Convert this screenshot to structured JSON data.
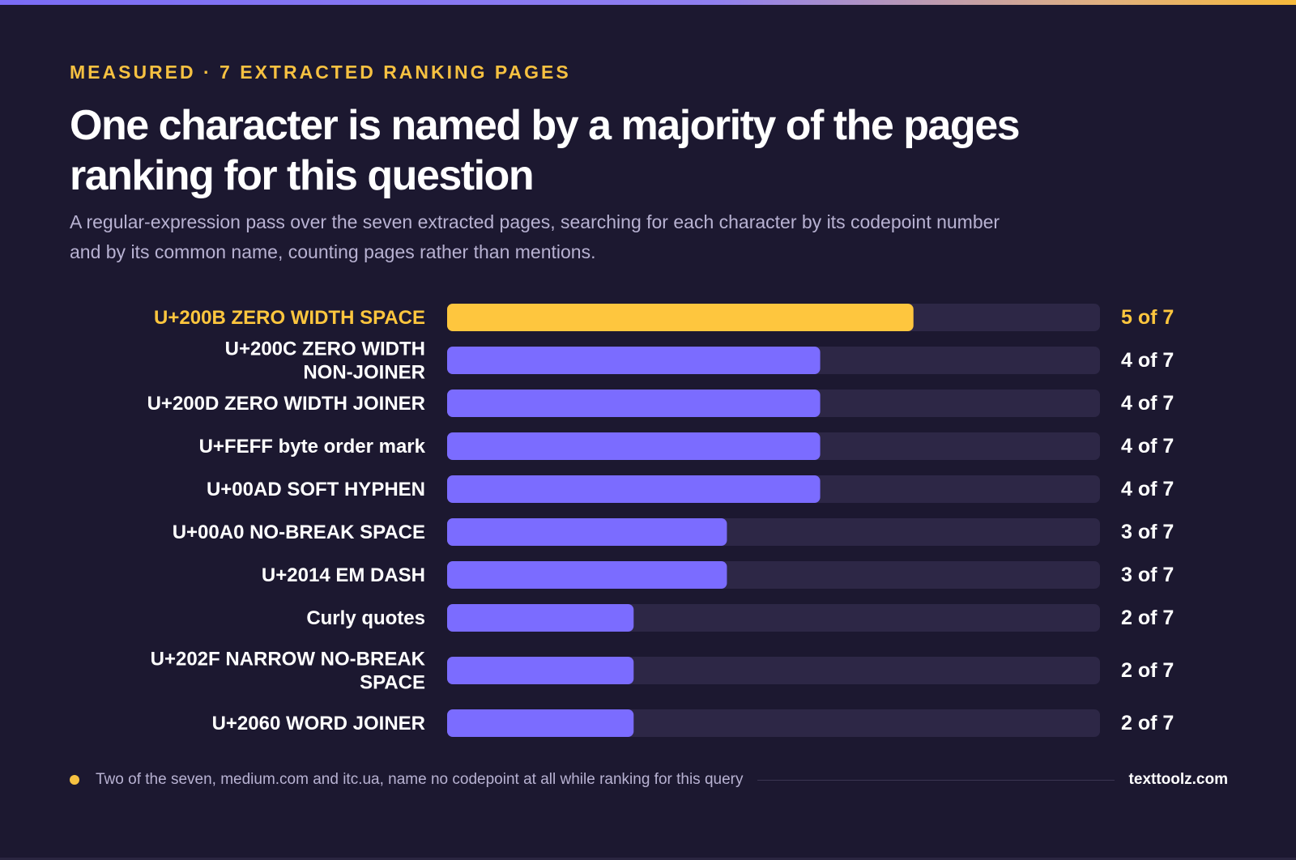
{
  "header": {
    "kicker": "MEASURED · 7 EXTRACTED RANKING PAGES",
    "title": "One character is named by a majority of the pages ranking for this question",
    "subtitle": "A regular-expression pass over the seven extracted pages, searching for each character by its codepoint number and by its common name, counting pages rather than mentions."
  },
  "chart_data": {
    "type": "bar",
    "orientation": "horizontal",
    "categories": [
      "U+200B ZERO WIDTH SPACE",
      "U+200C ZERO WIDTH NON-JOINER",
      "U+200D ZERO WIDTH JOINER",
      "U+FEFF byte order mark",
      "U+00AD SOFT HYPHEN",
      "U+00A0 NO-BREAK SPACE",
      "U+2014 EM DASH",
      "Curly quotes",
      "U+202F NARROW NO-BREAK SPACE",
      "U+2060 WORD JOINER"
    ],
    "values": [
      5,
      4,
      4,
      4,
      4,
      3,
      3,
      2,
      2,
      2
    ],
    "value_labels": [
      "5 of 7",
      "4 of 7",
      "4 of 7",
      "4 of 7",
      "4 of 7",
      "3 of 7",
      "3 of 7",
      "2 of 7",
      "2 of 7",
      "2 of 7"
    ],
    "xlim": [
      0,
      7
    ],
    "highlight_index": 0,
    "colors": {
      "highlight": "#fec63e",
      "bar": "#7b6cff",
      "track": "#2d2746",
      "label": "#ffffff",
      "highlight_label": "#fec63e"
    },
    "grid": false,
    "legend": "none"
  },
  "footer": {
    "note": "Two of the seven, medium.com and itc.ua, name no codepoint at all while ranking for this query",
    "brand": "texttoolz.com"
  }
}
